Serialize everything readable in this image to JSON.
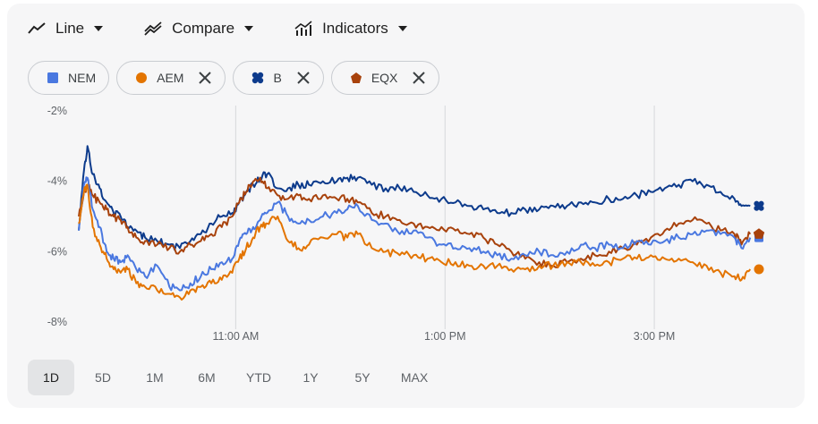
{
  "toolbar": {
    "items": [
      {
        "label": "Line",
        "icon": "line-chart-icon"
      },
      {
        "label": "Compare",
        "icon": "compare-icon"
      },
      {
        "label": "Indicators",
        "icon": "indicators-icon"
      }
    ]
  },
  "chips": [
    {
      "label": "NEM",
      "color": "#4a78e0",
      "marker": "square",
      "removable": false
    },
    {
      "label": "AEM",
      "color": "#e37400",
      "marker": "circle",
      "removable": true
    },
    {
      "label": "B",
      "color": "#0d3b8c",
      "marker": "clover",
      "removable": true
    },
    {
      "label": "EQX",
      "color": "#a8420c",
      "marker": "pentagon",
      "removable": true
    }
  ],
  "ranges": {
    "items": [
      "1D",
      "5D",
      "1M",
      "6M",
      "YTD",
      "1Y",
      "5Y",
      "MAX"
    ],
    "active": "1D"
  },
  "chart_data": {
    "type": "line",
    "x_unit": "minutes since 9:30 AM",
    "x_range": [
      0,
      390
    ],
    "ylim": [
      -8,
      -2
    ],
    "yticks": [
      -2,
      -4,
      -6,
      -8
    ],
    "ytick_labels": [
      "-2%",
      "-4%",
      "-6%",
      "-8%"
    ],
    "xticks": [
      90,
      210,
      330
    ],
    "xtick_labels": [
      "11:00 AM",
      "1:00 PM",
      "3:00 PM"
    ],
    "vertical_gridlines": true,
    "series": [
      {
        "name": "NEM",
        "color": "#4a78e0",
        "marker": "square",
        "x": [
          0,
          3,
          5,
          8,
          12,
          16,
          20,
          24,
          28,
          33,
          38,
          45,
          52,
          58,
          64,
          70,
          76,
          82,
          88,
          92,
          96,
          100,
          104,
          108,
          114,
          120,
          126,
          132,
          140,
          148,
          154,
          160,
          168,
          176,
          184,
          192,
          200,
          208,
          216,
          224,
          232,
          240,
          248,
          256,
          264,
          272,
          280,
          288,
          296,
          304,
          312,
          320,
          328,
          336,
          344,
          352,
          360,
          368,
          376,
          380,
          385
        ],
        "y": [
          -5.4,
          -4.1,
          -3.9,
          -4.8,
          -5.3,
          -6.0,
          -6.2,
          -6.3,
          -6.1,
          -6.5,
          -6.7,
          -6.4,
          -7.0,
          -7.1,
          -6.9,
          -6.7,
          -6.5,
          -6.3,
          -6.2,
          -5.7,
          -5.5,
          -5.3,
          -5.1,
          -4.9,
          -4.6,
          -5.0,
          -5.2,
          -5.1,
          -5.0,
          -4.9,
          -4.8,
          -4.7,
          -5.1,
          -5.2,
          -5.5,
          -5.4,
          -5.6,
          -5.8,
          -5.9,
          -5.9,
          -6.0,
          -6.1,
          -6.2,
          -6.1,
          -6.0,
          -6.1,
          -6.0,
          -5.8,
          -5.9,
          -5.8,
          -5.9,
          -5.7,
          -5.8,
          -5.7,
          -5.6,
          -5.5,
          -5.4,
          -5.5,
          -5.6,
          -5.9,
          -5.6
        ]
      },
      {
        "name": "AEM",
        "color": "#e37400",
        "marker": "circle",
        "x": [
          0,
          3,
          5,
          8,
          12,
          16,
          20,
          24,
          28,
          33,
          38,
          45,
          52,
          58,
          64,
          70,
          76,
          82,
          88,
          92,
          96,
          100,
          104,
          108,
          114,
          120,
          126,
          132,
          140,
          148,
          154,
          160,
          168,
          176,
          184,
          192,
          200,
          208,
          216,
          224,
          232,
          240,
          248,
          256,
          264,
          272,
          280,
          288,
          296,
          304,
          312,
          320,
          328,
          336,
          344,
          352,
          360,
          368,
          376,
          380,
          385
        ],
        "y": [
          -5.2,
          -4.3,
          -4.1,
          -5.3,
          -5.8,
          -6.2,
          -6.5,
          -6.6,
          -6.5,
          -6.9,
          -7.0,
          -7.1,
          -7.2,
          -7.3,
          -7.1,
          -7.0,
          -6.9,
          -6.8,
          -6.6,
          -6.2,
          -5.9,
          -5.6,
          -5.3,
          -5.2,
          -5.0,
          -5.7,
          -5.9,
          -5.8,
          -5.6,
          -5.5,
          -5.6,
          -5.5,
          -5.9,
          -6.0,
          -6.1,
          -6.1,
          -6.2,
          -6.3,
          -6.3,
          -6.4,
          -6.4,
          -6.4,
          -6.5,
          -6.5,
          -6.4,
          -6.4,
          -6.3,
          -6.3,
          -6.4,
          -6.3,
          -6.2,
          -6.2,
          -6.1,
          -6.2,
          -6.2,
          -6.3,
          -6.4,
          -6.6,
          -6.7,
          -6.8,
          -6.5
        ]
      },
      {
        "name": "B",
        "color": "#0d3b8c",
        "marker": "clover",
        "x": [
          0,
          3,
          5,
          8,
          12,
          16,
          20,
          24,
          28,
          33,
          38,
          45,
          52,
          58,
          64,
          70,
          76,
          82,
          88,
          92,
          96,
          100,
          104,
          108,
          114,
          120,
          126,
          132,
          140,
          148,
          154,
          160,
          168,
          176,
          184,
          192,
          200,
          208,
          216,
          224,
          232,
          240,
          248,
          256,
          264,
          272,
          280,
          288,
          296,
          304,
          312,
          320,
          328,
          336,
          344,
          352,
          360,
          368,
          376,
          380,
          385
        ],
        "y": [
          -5.4,
          -3.7,
          -3.0,
          -3.8,
          -4.2,
          -4.6,
          -4.9,
          -5.0,
          -5.3,
          -5.4,
          -5.6,
          -5.7,
          -5.8,
          -5.9,
          -5.7,
          -5.5,
          -5.2,
          -5.0,
          -4.9,
          -4.6,
          -4.3,
          -4.1,
          -3.9,
          -3.8,
          -4.2,
          -4.2,
          -4.1,
          -4.1,
          -4.0,
          -4.0,
          -3.9,
          -3.9,
          -4.1,
          -4.2,
          -4.2,
          -4.3,
          -4.4,
          -4.5,
          -4.6,
          -4.7,
          -4.8,
          -4.9,
          -4.9,
          -4.8,
          -4.8,
          -4.7,
          -4.7,
          -4.6,
          -4.6,
          -4.5,
          -4.5,
          -4.4,
          -4.3,
          -4.2,
          -4.1,
          -4.0,
          -4.1,
          -4.3,
          -4.5,
          -4.7,
          -4.7
        ]
      },
      {
        "name": "EQX",
        "color": "#a8420c",
        "marker": "pentagon",
        "x": [
          0,
          3,
          5,
          8,
          12,
          16,
          20,
          24,
          28,
          33,
          38,
          45,
          52,
          58,
          64,
          70,
          76,
          82,
          88,
          92,
          96,
          100,
          104,
          108,
          114,
          120,
          126,
          132,
          140,
          148,
          154,
          160,
          168,
          176,
          184,
          192,
          200,
          208,
          216,
          224,
          232,
          240,
          248,
          256,
          264,
          272,
          280,
          288,
          296,
          304,
          312,
          320,
          328,
          336,
          344,
          352,
          360,
          368,
          376,
          380,
          385
        ],
        "y": [
          -5.0,
          -4.3,
          -4.1,
          -4.4,
          -4.6,
          -4.8,
          -5.0,
          -5.1,
          -5.3,
          -5.6,
          -5.7,
          -5.8,
          -5.9,
          -6.0,
          -5.8,
          -5.7,
          -5.5,
          -5.3,
          -5.0,
          -4.6,
          -4.3,
          -4.0,
          -3.9,
          -4.2,
          -4.4,
          -4.5,
          -4.4,
          -4.5,
          -4.4,
          -4.5,
          -4.5,
          -4.6,
          -4.9,
          -5.0,
          -5.1,
          -5.2,
          -5.3,
          -5.3,
          -5.4,
          -5.5,
          -5.6,
          -5.8,
          -6.0,
          -6.2,
          -6.3,
          -6.4,
          -6.3,
          -6.2,
          -6.1,
          -6.0,
          -5.9,
          -5.8,
          -5.6,
          -5.4,
          -5.2,
          -5.1,
          -5.2,
          -5.4,
          -5.5,
          -5.8,
          -5.5
        ]
      }
    ]
  }
}
